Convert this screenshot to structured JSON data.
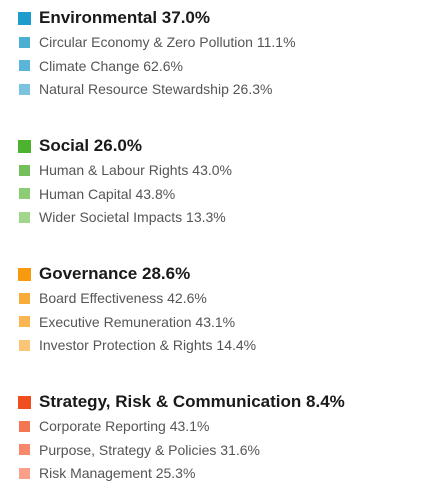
{
  "groups": [
    {
      "title": "Environmental 37.0%",
      "color": "#1f9bcc",
      "items": [
        {
          "label": "Circular Economy & Zero Pollution 11.1%",
          "color": "#4bb0d4"
        },
        {
          "label": "Climate Change 62.6%",
          "color": "#5bb5d8"
        },
        {
          "label": "Natural Resource Stewardship 26.3%",
          "color": "#7cc3e0"
        }
      ]
    },
    {
      "title": "Social 26.0%",
      "color": "#4db32e",
      "items": [
        {
          "label": "Human & Labour Rights 43.0%",
          "color": "#74c05a"
        },
        {
          "label": "Human Capital 43.8%",
          "color": "#8ccc72"
        },
        {
          "label": "Wider Societal Impacts 13.3%",
          "color": "#a3d68d"
        }
      ]
    },
    {
      "title": "Governance 28.6%",
      "color": "#f79a0e",
      "items": [
        {
          "label": "Board Effectiveness 42.6%",
          "color": "#f9ab3a"
        },
        {
          "label": "Executive Remuneration 43.1%",
          "color": "#fbb552"
        },
        {
          "label": "Investor Protection & Rights 14.4%",
          "color": "#fcc476"
        }
      ]
    },
    {
      "title": "Strategy, Risk & Communication 8.4%",
      "color": "#f04e1f",
      "items": [
        {
          "label": "Corporate Reporting 43.1%",
          "color": "#f47552"
        },
        {
          "label": "Purpose, Strategy & Policies 31.6%",
          "color": "#f6896b"
        },
        {
          "label": "Risk Management 25.3%",
          "color": "#f8a088"
        }
      ]
    }
  ]
}
